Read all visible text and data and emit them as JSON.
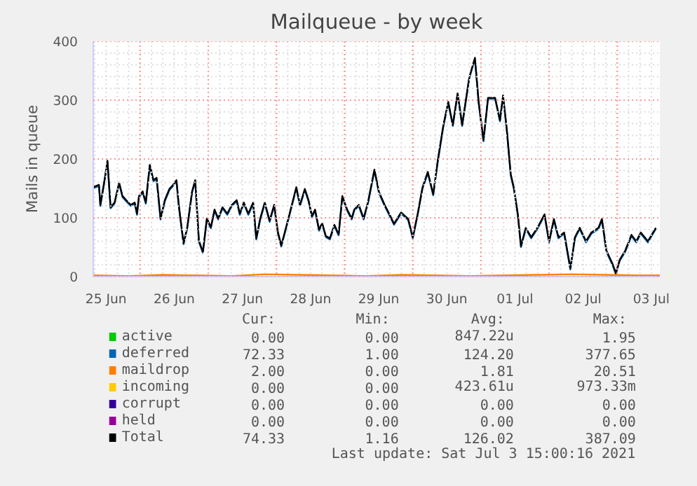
{
  "chart_data": {
    "type": "line",
    "title": "Mailqueue - by week",
    "ylabel": "Mails in queue",
    "xlim": [
      "2021-06-25T07:30",
      "2021-07-03T15:00"
    ],
    "ylim": [
      0,
      400
    ],
    "yticks": [
      0,
      100,
      200,
      300,
      400
    ],
    "xticks": [
      {
        "value": "2021-06-25T12:00",
        "label": "25 Jun"
      },
      {
        "value": "2021-06-26T12:00",
        "label": "26 Jun"
      },
      {
        "value": "2021-06-27T12:00",
        "label": "27 Jun"
      },
      {
        "value": "2021-06-28T12:00",
        "label": "28 Jun"
      },
      {
        "value": "2021-06-29T12:00",
        "label": "29 Jun"
      },
      {
        "value": "2021-06-30T12:00",
        "label": "30 Jun"
      },
      {
        "value": "2021-07-01T12:00",
        "label": "01 Jul"
      },
      {
        "value": "2021-07-02T12:00",
        "label": "02 Jul"
      },
      {
        "value": "2021-07-03T12:00",
        "label": "03 Jul"
      }
    ],
    "grid": true,
    "legend": "bottom",
    "line_style": "solid",
    "x": [
      "2021-06-25T07:30",
      "2021-06-25T09:30",
      "2021-06-25T10:00",
      "2021-06-25T11:36",
      "2021-06-25T12:30",
      "2021-06-25T13:36",
      "2021-06-25T15:00",
      "2021-06-25T16:36",
      "2021-06-25T17:48",
      "2021-06-25T19:06",
      "2021-06-25T20:42",
      "2021-06-25T22:06",
      "2021-06-25T22:54",
      "2021-06-25T23:36",
      "2021-06-26T00:54",
      "2021-06-26T02:00",
      "2021-06-26T03:24",
      "2021-06-26T04:42",
      "2021-06-26T05:48",
      "2021-06-26T07:12",
      "2021-06-26T08:42",
      "2021-06-26T10:18",
      "2021-06-26T11:36",
      "2021-06-26T12:48",
      "2021-06-26T13:36",
      "2021-06-26T15:18",
      "2021-06-26T16:36",
      "2021-06-26T18:18",
      "2021-06-26T19:24",
      "2021-06-26T20:42",
      "2021-06-26T22:06",
      "2021-06-26T23:30",
      "2021-06-27T00:54",
      "2021-06-27T02:12",
      "2021-06-27T03:30",
      "2021-06-27T05:00",
      "2021-06-27T06:42",
      "2021-06-27T08:18",
      "2021-06-27T10:00",
      "2021-06-27T11:06",
      "2021-06-27T12:30",
      "2021-06-27T14:06",
      "2021-06-27T15:48",
      "2021-06-27T16:54",
      "2021-06-27T18:18",
      "2021-06-27T19:54",
      "2021-06-27T21:36",
      "2021-06-27T23:12",
      "2021-06-28T00:30",
      "2021-06-28T01:42",
      "2021-06-28T03:24",
      "2021-06-28T05:00",
      "2021-06-28T07:00",
      "2021-06-28T08:18",
      "2021-06-28T10:00",
      "2021-06-28T11:18",
      "2021-06-28T12:30",
      "2021-06-28T13:36",
      "2021-06-28T15:00",
      "2021-06-28T16:06",
      "2021-06-28T17:24",
      "2021-06-28T18:48",
      "2021-06-28T20:24",
      "2021-06-28T21:54",
      "2021-06-28T23:12",
      "2021-06-29T00:54",
      "2021-06-29T02:30",
      "2021-06-29T03:24",
      "2021-06-29T05:00",
      "2021-06-29T06:42",
      "2021-06-29T08:18",
      "2021-06-29T10:30",
      "2021-06-29T12:06",
      "2021-06-29T14:06",
      "2021-06-29T15:48",
      "2021-06-29T17:24",
      "2021-06-29T19:54",
      "2021-06-29T22:24",
      "2021-06-30T00:00",
      "2021-06-30T01:42",
      "2021-06-30T03:24",
      "2021-06-30T05:18",
      "2021-06-30T07:12",
      "2021-06-30T08:48",
      "2021-06-30T10:48",
      "2021-06-30T12:30",
      "2021-06-30T14:06",
      "2021-06-30T15:48",
      "2021-06-30T17:24",
      "2021-06-30T19:54",
      "2021-06-30T21:54",
      "2021-06-30T23:12",
      "2021-07-01T00:54",
      "2021-07-01T02:30",
      "2021-07-01T05:00",
      "2021-07-01T06:42",
      "2021-07-01T07:48",
      "2021-07-01T09:06",
      "2021-07-01T10:30",
      "2021-07-01T11:36",
      "2021-07-01T13:00",
      "2021-07-01T14:06",
      "2021-07-01T15:48",
      "2021-07-01T17:42",
      "2021-07-01T19:54",
      "2021-07-01T22:24",
      "2021-07-02T00:00",
      "2021-07-02T01:42",
      "2021-07-02T03:18",
      "2021-07-02T05:18",
      "2021-07-02T07:30",
      "2021-07-02T09:06",
      "2021-07-02T10:48",
      "2021-07-02T13:00",
      "2021-07-02T14:54",
      "2021-07-02T17:24",
      "2021-07-02T18:36",
      "2021-07-02T20:12",
      "2021-07-02T22:24",
      "2021-07-02T23:30",
      "2021-07-03T00:54",
      "2021-07-03T02:48",
      "2021-07-03T05:00",
      "2021-07-03T06:42",
      "2021-07-03T08:18",
      "2021-07-03T10:48",
      "2021-07-03T12:06",
      "2021-07-03T13:36"
    ],
    "series": [
      {
        "name": "active",
        "color": "#00cc00",
        "values": [
          null,
          null,
          null,
          null,
          null,
          null,
          null,
          null,
          null,
          null,
          null,
          null,
          null,
          null,
          null,
          null,
          null,
          null,
          null,
          null,
          null,
          null,
          null,
          null,
          null,
          null,
          null,
          null,
          null,
          null,
          null,
          null,
          null,
          null,
          null,
          null,
          null,
          null,
          null,
          null,
          null,
          null,
          null,
          null,
          null,
          null,
          null,
          null,
          null,
          null,
          null,
          null,
          null,
          null,
          null,
          null,
          null,
          null,
          null,
          null,
          null,
          null,
          null,
          null,
          null,
          null,
          null,
          null,
          null,
          null,
          null,
          null,
          null,
          null,
          null,
          null,
          null,
          null,
          null,
          null,
          null,
          null,
          null,
          null,
          null,
          null,
          null,
          null,
          null,
          null,
          null,
          null,
          null,
          null,
          null,
          null,
          null,
          null,
          null,
          null,
          null,
          null,
          null,
          null,
          null,
          null,
          null,
          null,
          null,
          null,
          null,
          null,
          null,
          null,
          null,
          null,
          null,
          null,
          null,
          null,
          null,
          null,
          null,
          null,
          null,
          null,
          null,
          null
        ]
      },
      {
        "name": "deferred",
        "color": "#0066b3",
        "values": [
          150,
          154,
          120,
          166,
          195,
          116,
          124,
          158,
          135,
          128,
          120,
          124,
          105,
          135,
          143,
          124,
          188,
          162,
          166,
          97,
          128,
          147,
          154,
          162,
          120,
          55,
          82,
          143,
          162,
          59,
          40,
          97,
          82,
          112,
          97,
          116,
          105,
          120,
          128,
          105,
          124,
          105,
          124,
          63,
          97,
          124,
          93,
          120,
          74,
          51,
          82,
          112,
          150,
          120,
          147,
          128,
          101,
          112,
          78,
          89,
          67,
          63,
          86,
          70,
          135,
          112,
          97,
          112,
          120,
          97,
          126,
          180,
          142,
          120,
          104,
          88,
          107,
          96,
          65,
          104,
          149,
          176,
          138,
          195,
          256,
          295,
          256,
          310,
          256,
          337,
          370,
          295,
          230,
          302,
          302,
          264,
          306,
          249,
          172,
          149,
          104,
          50,
          81,
          65,
          81,
          104,
          58,
          96,
          65,
          73,
          12,
          65,
          81,
          58,
          73,
          81,
          96,
          42,
          19,
          4,
          27,
          42,
          69,
          58,
          73,
          58,
          69,
          81
        ]
      },
      {
        "name": "maildrop",
        "color": "#ff8000",
        "x": [
          "2021-06-25T07:30",
          "2021-06-25T20:00",
          "2021-06-26T08:00",
          "2021-06-26T20:00",
          "2021-06-27T08:00",
          "2021-06-27T20:00",
          "2021-06-28T08:00",
          "2021-06-28T20:00",
          "2021-06-29T08:00",
          "2021-06-29T20:00",
          "2021-06-30T08:00",
          "2021-06-30T20:00",
          "2021-07-01T08:00",
          "2021-07-01T20:00",
          "2021-07-02T08:00",
          "2021-07-02T20:00",
          "2021-07-03T08:00",
          "2021-07-03T15:00"
        ],
        "values": [
          2,
          1,
          3,
          2,
          1,
          4,
          3,
          2,
          1,
          3,
          2,
          1,
          2,
          3,
          4,
          3,
          2,
          2
        ]
      },
      {
        "name": "incoming",
        "color": "#ffcc00",
        "values": [
          null,
          null,
          null,
          null,
          null,
          null,
          null,
          null,
          null,
          null,
          null,
          null,
          null,
          null,
          null,
          null,
          null,
          null,
          null,
          null,
          null,
          null,
          null,
          null,
          null,
          null,
          null,
          null,
          null,
          null,
          null,
          null,
          null,
          null,
          null,
          null,
          null,
          null,
          null,
          null,
          null,
          null,
          null,
          null,
          null,
          null,
          null,
          null,
          null,
          null,
          null,
          null,
          null,
          null,
          null,
          null,
          null,
          null,
          null,
          null,
          null,
          null,
          null,
          null,
          null,
          null,
          null,
          null,
          null,
          null,
          null,
          null,
          null,
          null,
          null,
          null,
          null,
          null,
          null,
          null,
          null,
          null,
          null,
          null,
          null,
          null,
          null,
          null,
          null,
          null,
          null,
          null,
          null,
          null,
          null,
          null,
          null,
          null,
          null,
          null,
          null,
          null,
          null,
          null,
          null,
          null,
          null,
          null,
          null,
          null,
          null,
          null,
          null,
          null,
          null,
          null,
          null,
          null,
          null,
          null,
          null,
          null,
          null,
          null,
          null,
          null,
          null,
          null
        ]
      },
      {
        "name": "corrupt",
        "color": "#330099",
        "values": [
          null,
          null,
          null,
          null,
          null,
          null,
          null,
          null,
          null,
          null,
          null,
          null,
          null,
          null,
          null,
          null,
          null,
          null,
          null,
          null,
          null,
          null,
          null,
          null,
          null,
          null,
          null,
          null,
          null,
          null,
          null,
          null,
          null,
          null,
          null,
          null,
          null,
          null,
          null,
          null,
          null,
          null,
          null,
          null,
          null,
          null,
          null,
          null,
          null,
          null,
          null,
          null,
          null,
          null,
          null,
          null,
          null,
          null,
          null,
          null,
          null,
          null,
          null,
          null,
          null,
          null,
          null,
          null,
          null,
          null,
          null,
          null,
          null,
          null,
          null,
          null,
          null,
          null,
          null,
          null,
          null,
          null,
          null,
          null,
          null,
          null,
          null,
          null,
          null,
          null,
          null,
          null,
          null,
          null,
          null,
          null,
          null,
          null,
          null,
          null,
          null,
          null,
          null,
          null,
          null,
          null,
          null,
          null,
          null,
          null,
          null,
          null,
          null,
          null,
          null,
          null,
          null,
          null,
          null,
          null,
          null,
          null,
          null,
          null,
          null,
          null,
          null,
          null
        ]
      },
      {
        "name": "held",
        "color": "#990099",
        "values": [
          null,
          null,
          null,
          null,
          null,
          null,
          null,
          null,
          null,
          null,
          null,
          null,
          null,
          null,
          null,
          null,
          null,
          null,
          null,
          null,
          null,
          null,
          null,
          null,
          null,
          null,
          null,
          null,
          null,
          null,
          null,
          null,
          null,
          null,
          null,
          null,
          null,
          null,
          null,
          null,
          null,
          null,
          null,
          null,
          null,
          null,
          null,
          null,
          null,
          null,
          null,
          null,
          null,
          null,
          null,
          null,
          null,
          null,
          null,
          null,
          null,
          null,
          null,
          null,
          null,
          null,
          null,
          null,
          null,
          null,
          null,
          null,
          null,
          null,
          null,
          null,
          null,
          null,
          null,
          null,
          null,
          null,
          null,
          null,
          null,
          null,
          null,
          null,
          null,
          null,
          null,
          null,
          null,
          null,
          null,
          null,
          null,
          null,
          null,
          null,
          null,
          null,
          null,
          null,
          null,
          null,
          null,
          null,
          null,
          null,
          null,
          null,
          null,
          null,
          null,
          null,
          null,
          null,
          null,
          null,
          null,
          null,
          null,
          null,
          null,
          null,
          null,
          null
        ]
      },
      {
        "name": "Total",
        "color": "#000000",
        "values": [
          152,
          156,
          122,
          168,
          197,
          118,
          126,
          160,
          137,
          130,
          122,
          126,
          107,
          137,
          145,
          126,
          190,
          164,
          168,
          99,
          130,
          149,
          156,
          164,
          122,
          57,
          84,
          145,
          164,
          61,
          42,
          99,
          84,
          114,
          99,
          118,
          107,
          122,
          130,
          107,
          126,
          107,
          126,
          65,
          99,
          126,
          95,
          122,
          76,
          53,
          84,
          114,
          152,
          122,
          149,
          130,
          103,
          114,
          80,
          91,
          69,
          65,
          88,
          72,
          137,
          114,
          99,
          114,
          122,
          99,
          128,
          182,
          144,
          122,
          106,
          90,
          109,
          98,
          67,
          106,
          151,
          178,
          140,
          197,
          258,
          297,
          258,
          312,
          258,
          339,
          372,
          297,
          232,
          304,
          304,
          266,
          308,
          251,
          174,
          151,
          106,
          52,
          83,
          67,
          83,
          106,
          60,
          98,
          67,
          75,
          14,
          67,
          83,
          60,
          75,
          83,
          98,
          44,
          21,
          6,
          29,
          44,
          71,
          60,
          75,
          60,
          71,
          83
        ]
      }
    ],
    "annotations": [
      "Cur:",
      "Min:",
      "Avg:",
      "Max:",
      "0.00",
      "0.00",
      "847.22u",
      "1.95",
      "72.33",
      "1.00",
      "124.20",
      "377.65",
      "2.00",
      "0.00",
      "1.81",
      "20.51",
      "0.00",
      "0.00",
      "423.61u",
      "973.33m",
      "0.00",
      "0.00",
      "0.00",
      "0.00",
      "0.00",
      "0.00",
      "0.00",
      "0.00",
      "74.33",
      "1.16",
      "126.02",
      "387.09",
      "Last update: Sat Jul  3 15:00:16 2021"
    ]
  }
}
